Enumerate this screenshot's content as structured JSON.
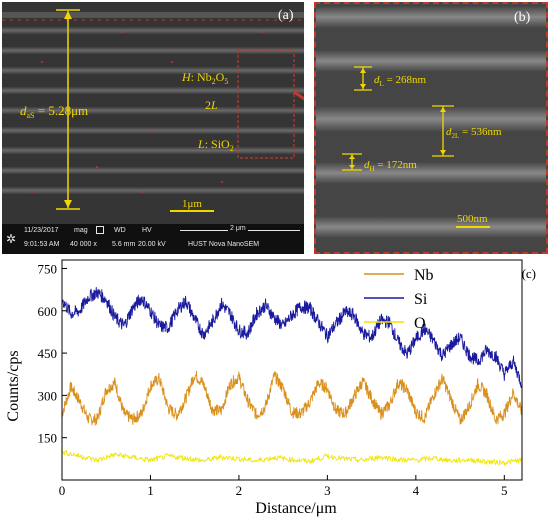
{
  "panel_a": {
    "letter": "(a)",
    "total_label_main": "d",
    "total_label_sub": "aS",
    "total_label_value": " = 5.28μm",
    "h_label_italic": "H",
    "h_label_rest": ": Nb",
    "h_sub1": "2",
    "h_mid": "O",
    "h_sub2": "5",
    "two_l_num": "2",
    "two_l_italic": "L",
    "l_label_italic": "L",
    "l_label_rest": ": SiO",
    "l_sub": "2",
    "scale_label": "1μm",
    "info": {
      "date": "11/23/2017",
      "time": "9:01:53 AM",
      "mag_label": "mag",
      "mag_value": "40 000 x",
      "wd_label": "WD",
      "wd_value": "5.6 mm",
      "hv_label": "HV",
      "hv_value": "20.00 kV",
      "scale": "2 μm",
      "instrument": "HUST Nova NanoSEM"
    }
  },
  "panel_b": {
    "letter": "(b)",
    "dl_main": "d",
    "dl_sub": "L",
    "dl_value": " = 268nm",
    "d2l_main": "d",
    "d2l_sub": "2L",
    "d2l_value": " = 536nm",
    "dh_main": "d",
    "dh_sub": "H",
    "dh_value": " = 172nm",
    "scale_label": "500nm"
  },
  "chart_data": {
    "type": "line",
    "letter": "(c)",
    "xlabel": "Distance/μm",
    "ylabel": "Counts/cps",
    "xlim": [
      0,
      5.2
    ],
    "ylim": [
      0,
      780
    ],
    "xticks": [
      "0",
      "1",
      "2",
      "3",
      "4",
      "5"
    ],
    "yticks": [
      "150",
      "300",
      "450",
      "600",
      "750"
    ],
    "legend_position": "top-right",
    "series": [
      {
        "name": "Nb",
        "color": "#d9901c",
        "x": [
          0,
          0.1,
          0.2,
          0.3,
          0.4,
          0.5,
          0.6,
          0.7,
          0.8,
          0.9,
          1.0,
          1.1,
          1.2,
          1.3,
          1.4,
          1.5,
          1.6,
          1.7,
          1.8,
          1.9,
          2.0,
          2.1,
          2.2,
          2.3,
          2.4,
          2.5,
          2.6,
          2.7,
          2.8,
          2.9,
          3.0,
          3.1,
          3.2,
          3.3,
          3.4,
          3.5,
          3.6,
          3.7,
          3.8,
          3.9,
          4.0,
          4.1,
          4.2,
          4.3,
          4.4,
          4.5,
          4.6,
          4.7,
          4.8,
          4.9,
          5.0,
          5.1,
          5.2
        ],
        "y": [
          235,
          330,
          280,
          215,
          215,
          320,
          345,
          235,
          215,
          235,
          335,
          360,
          255,
          230,
          290,
          375,
          340,
          250,
          245,
          340,
          365,
          280,
          230,
          260,
          370,
          325,
          240,
          235,
          275,
          345,
          325,
          245,
          235,
          295,
          350,
          290,
          235,
          265,
          345,
          320,
          240,
          220,
          300,
          360,
          285,
          210,
          260,
          340,
          305,
          215,
          235,
          310,
          240
        ]
      },
      {
        "name": "Si",
        "color": "#1a1a9e",
        "x": [
          0,
          0.1,
          0.2,
          0.3,
          0.4,
          0.5,
          0.6,
          0.7,
          0.8,
          0.9,
          1.0,
          1.1,
          1.2,
          1.3,
          1.4,
          1.5,
          1.6,
          1.7,
          1.8,
          1.9,
          2.0,
          2.1,
          2.2,
          2.3,
          2.4,
          2.5,
          2.6,
          2.7,
          2.8,
          2.9,
          3.0,
          3.1,
          3.2,
          3.3,
          3.4,
          3.5,
          3.6,
          3.7,
          3.8,
          3.9,
          4.0,
          4.1,
          4.2,
          4.3,
          4.4,
          4.5,
          4.6,
          4.7,
          4.8,
          4.9,
          5.0,
          5.1,
          5.2
        ],
        "y": [
          640,
          590,
          600,
          650,
          665,
          640,
          575,
          545,
          610,
          645,
          600,
          545,
          540,
          600,
          635,
          570,
          515,
          560,
          625,
          590,
          530,
          520,
          590,
          620,
          575,
          545,
          585,
          615,
          610,
          560,
          510,
          555,
          595,
          585,
          520,
          505,
          565,
          560,
          490,
          445,
          500,
          535,
          495,
          440,
          480,
          505,
          445,
          420,
          460,
          440,
          375,
          420,
          340
        ]
      },
      {
        "name": "O",
        "color": "#f0e400",
        "x": [
          0,
          0.2,
          0.4,
          0.6,
          0.8,
          1.0,
          1.2,
          1.4,
          1.6,
          1.8,
          2.0,
          2.2,
          2.4,
          2.6,
          2.8,
          3.0,
          3.2,
          3.4,
          3.6,
          3.8,
          4.0,
          4.2,
          4.4,
          4.6,
          4.8,
          5.0,
          5.2
        ],
        "y": [
          100,
          85,
          70,
          90,
          80,
          70,
          85,
          78,
          68,
          82,
          75,
          68,
          80,
          72,
          66,
          85,
          75,
          70,
          82,
          72,
          70,
          78,
          68,
          72,
          65,
          62,
          70
        ]
      }
    ]
  }
}
